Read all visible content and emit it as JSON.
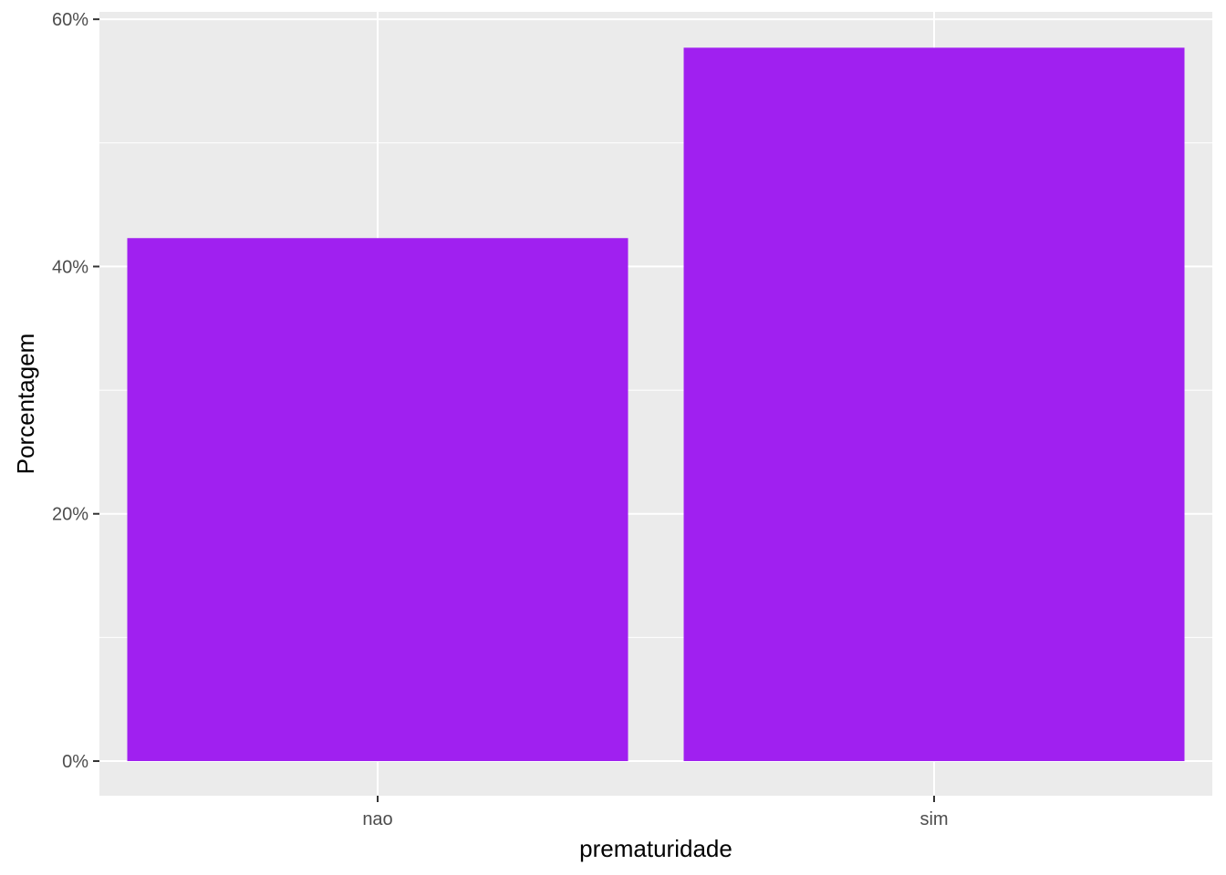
{
  "chart_data": {
    "type": "bar",
    "categories": [
      "nao",
      "sim"
    ],
    "values": [
      42.3,
      57.7
    ],
    "xlabel": "prematuridade",
    "ylabel": "Porcentagem",
    "ylim": [
      -2.8,
      60.6
    ],
    "yticks": [
      0,
      20,
      40,
      60
    ],
    "ytick_labels": [
      "0%",
      "20%",
      "40%",
      "60%"
    ],
    "grid": true,
    "colors": {
      "bar": "#A020F0",
      "panel": "#EBEBEB",
      "grid": "#FFFFFF",
      "tick": "#333333"
    }
  }
}
